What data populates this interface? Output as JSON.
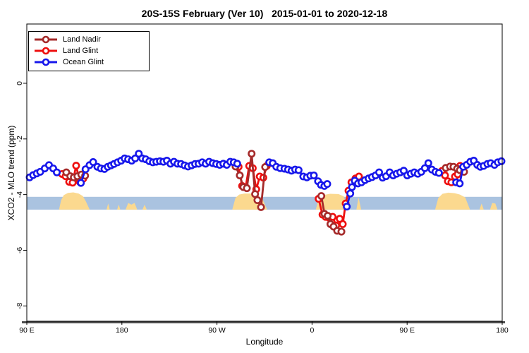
{
  "chart_data": {
    "type": "line",
    "title": "20S-15S February (Ver 10)   2015-01-01 to 2020-12-18",
    "xlabel": "Longitude",
    "ylabel": "XCO2 - MLO trend (ppm)",
    "x_axis": {
      "coordinate": "degrees east of left edge; axis wraps 90E > 180 > 90W > 0 > 90E > 180",
      "lim": [
        0,
        450
      ],
      "ticks": [
        {
          "t": 0,
          "label": "90 E"
        },
        {
          "t": 90,
          "label": "180"
        },
        {
          "t": 180,
          "label": "90 W"
        },
        {
          "t": 270,
          "label": "0"
        },
        {
          "t": 360,
          "label": "90 E"
        },
        {
          "t": 450,
          "label": "180"
        }
      ]
    },
    "y_axis": {
      "lim": [
        -8.55,
        2.13
      ],
      "ticks": [
        {
          "v": 0,
          "label": "0"
        },
        {
          "v": -2,
          "label": "-2"
        },
        {
          "v": -4,
          "label": "-4"
        },
        {
          "v": -6,
          "label": "-6"
        },
        {
          "v": -8,
          "label": "-8"
        }
      ]
    },
    "legend": [
      {
        "label": "Land Nadir",
        "color": "#A52A2A"
      },
      {
        "label": "Land Glint",
        "color": "#EE0F0F"
      },
      {
        "label": "Ocean Glint",
        "color": "#1717EB"
      }
    ],
    "ocean_band": {
      "color": "#AAC3E0",
      "top": -4.08,
      "bottom": -4.54
    },
    "land_elevation": {
      "color": "#FBD98F",
      "base": -4.54,
      "mounds": [
        [
          [
            30.5,
            -4.54
          ],
          [
            32.5,
            -4.2
          ],
          [
            35,
            -4.02
          ],
          [
            39,
            -3.94
          ],
          [
            44,
            -3.92
          ],
          [
            49,
            -3.96
          ],
          [
            53,
            -4.05
          ],
          [
            56,
            -4.25
          ],
          [
            59.5,
            -4.54
          ]
        ],
        [
          [
            75.5,
            -4.54
          ],
          [
            77,
            -4.32
          ],
          [
            78.5,
            -4.54
          ]
        ],
        [
          [
            85.5,
            -4.54
          ],
          [
            87,
            -4.36
          ],
          [
            88.5,
            -4.54
          ]
        ],
        [
          [
            93.5,
            -4.54
          ],
          [
            96,
            -4.3
          ],
          [
            99,
            -4.36
          ],
          [
            102,
            -4.3
          ],
          [
            104.5,
            -4.54
          ]
        ],
        [
          [
            109.5,
            -4.54
          ],
          [
            111.5,
            -4.36
          ],
          [
            113.5,
            -4.54
          ]
        ],
        [
          [
            194.5,
            -4.54
          ],
          [
            197.5,
            -4.12
          ],
          [
            201,
            -4.0
          ],
          [
            206,
            -3.96
          ],
          [
            212,
            -3.96
          ],
          [
            218,
            -4.02
          ],
          [
            223,
            -4.15
          ],
          [
            227.5,
            -4.54
          ]
        ],
        [
          [
            273.5,
            -4.54
          ],
          [
            276.5,
            -4.16
          ],
          [
            280.5,
            -4.02
          ],
          [
            287,
            -3.97
          ],
          [
            295,
            -3.98
          ],
          [
            300,
            -4.06
          ],
          [
            303.5,
            -4.54
          ]
        ],
        [
          [
            312,
            -4.54
          ],
          [
            314,
            -4.1
          ],
          [
            316.5,
            -4.54
          ]
        ],
        [
          [
            386.5,
            -4.54
          ],
          [
            389.5,
            -4.12
          ],
          [
            393.5,
            -3.97
          ],
          [
            399,
            -3.93
          ],
          [
            405,
            -3.95
          ],
          [
            410,
            -4.0
          ],
          [
            415,
            -4.1
          ],
          [
            419.5,
            -4.54
          ]
        ],
        [
          [
            428.5,
            -4.54
          ],
          [
            430.5,
            -4.32
          ],
          [
            432.5,
            -4.54
          ]
        ],
        [
          [
            438.5,
            -4.54
          ],
          [
            440.5,
            -4.3
          ],
          [
            443.5,
            -4.32
          ],
          [
            445.5,
            -4.54
          ]
        ]
      ]
    },
    "series": [
      {
        "name": "Land Glint",
        "color": "#EE0F0F",
        "segments": [
          [
            [
              33.4,
              -3.26
            ],
            [
              36.7,
              -3.34
            ],
            [
              40.1,
              -3.54
            ],
            [
              43.4,
              -3.57
            ],
            [
              46.7,
              -2.96
            ],
            [
              50.1,
              -3.54
            ],
            [
              53.4,
              -3.43
            ]
          ],
          [
            [
              200.5,
              -3.0
            ],
            [
              203.8,
              -3.69
            ],
            [
              207.2,
              -3.73
            ],
            [
              210.5,
              -2.97
            ],
            [
              213.9,
              -3.05
            ],
            [
              217.2,
              -3.81
            ],
            [
              220.5,
              -3.35
            ],
            [
              223.9,
              -3.39
            ],
            [
              227.2,
              -2.97
            ]
          ],
          [
            [
              276.2,
              -4.15
            ],
            [
              279.9,
              -4.72
            ],
            [
              282.9,
              -4.8
            ],
            [
              286.2,
              -4.83
            ],
            [
              289.5,
              -4.8
            ],
            [
              292.8,
              -5.11
            ],
            [
              296.2,
              -4.87
            ],
            [
              299.1,
              -5.06
            ],
            [
              301.8,
              -4.32
            ],
            [
              304.5,
              -3.86
            ],
            [
              307.3,
              -3.56
            ],
            [
              311.1,
              -3.42
            ],
            [
              314.4,
              -3.35
            ]
          ],
          [
            [
              393,
              -3.15
            ],
            [
              395.9,
              -3.31
            ],
            [
              398.6,
              -3.52
            ],
            [
              401.9,
              -3.56
            ],
            [
              405.3,
              -3.35
            ],
            [
              407.9,
              -3.27
            ],
            [
              410.1,
              -2.97
            ]
          ]
        ]
      },
      {
        "name": "Land Nadir",
        "color": "#A52A2A",
        "segments": [
          [
            [
              37.4,
              -3.2
            ],
            [
              41.2,
              -3.34
            ],
            [
              44.5,
              -3.38
            ],
            [
              47.9,
              -3.34
            ],
            [
              51.6,
              -3.28
            ],
            [
              55.2,
              -3.32
            ]
          ],
          [
            [
              197.6,
              -2.99
            ],
            [
              201.6,
              -3.31
            ],
            [
              205,
              -3.73
            ],
            [
              208.3,
              -3.77
            ],
            [
              212.8,
              -2.53
            ],
            [
              216.1,
              -3.98
            ],
            [
              218.3,
              -4.2
            ],
            [
              221.7,
              -4.45
            ],
            [
              225.6,
              -3.01
            ]
          ],
          [
            [
              278.8,
              -4.05
            ],
            [
              281.8,
              -4.69
            ],
            [
              284.8,
              -4.76
            ],
            [
              287.4,
              -5.06
            ],
            [
              290.4,
              -5.15
            ],
            [
              293.8,
              -5.3
            ],
            [
              297.8,
              -5.33
            ]
          ],
          [
            [
              396.6,
              -3.04
            ],
            [
              400.6,
              -2.99
            ],
            [
              403.9,
              -3.0
            ],
            [
              407.3,
              -3.07
            ],
            [
              409.9,
              -3.12
            ],
            [
              413.9,
              -3.18
            ]
          ]
        ]
      },
      {
        "name": "Ocean Glint",
        "color": "#1717EB",
        "segments": [
          [
            [
              2.7,
              -3.38
            ],
            [
              6,
              -3.3
            ],
            [
              9.4,
              -3.24
            ],
            [
              12.7,
              -3.18
            ],
            [
              17,
              -3.06
            ],
            [
              21,
              -2.94
            ],
            [
              25,
              -3.06
            ],
            [
              28.4,
              -3.2
            ]
          ],
          [
            [
              51.2,
              -3.58
            ],
            [
              55.6,
              -3.09
            ],
            [
              59.4,
              -2.94
            ],
            [
              62.8,
              -2.83
            ],
            [
              66.8,
              -3.0
            ],
            [
              70.1,
              -3.06
            ],
            [
              73.5,
              -3.08
            ],
            [
              76.6,
              -3.0
            ],
            [
              79.7,
              -2.95
            ],
            [
              82.6,
              -2.9
            ],
            [
              85.9,
              -2.84
            ],
            [
              89.3,
              -2.78
            ],
            [
              92.6,
              -2.7
            ],
            [
              95.9,
              -2.73
            ],
            [
              99.3,
              -2.78
            ],
            [
              102.6,
              -2.7
            ],
            [
              106,
              -2.53
            ],
            [
              109.3,
              -2.7
            ],
            [
              112.6,
              -2.73
            ],
            [
              116,
              -2.8
            ],
            [
              119.3,
              -2.84
            ],
            [
              122.6,
              -2.82
            ],
            [
              126,
              -2.8
            ],
            [
              129.3,
              -2.82
            ],
            [
              132.6,
              -2.78
            ],
            [
              136,
              -2.89
            ],
            [
              139.3,
              -2.82
            ],
            [
              142.6,
              -2.89
            ],
            [
              146,
              -2.9
            ],
            [
              149.3,
              -2.95
            ],
            [
              152.6,
              -2.99
            ],
            [
              156,
              -2.95
            ],
            [
              159.3,
              -2.9
            ],
            [
              162.6,
              -2.89
            ],
            [
              166,
              -2.84
            ],
            [
              169.3,
              -2.89
            ],
            [
              172.6,
              -2.82
            ],
            [
              176,
              -2.87
            ],
            [
              179.3,
              -2.9
            ],
            [
              182.6,
              -2.93
            ],
            [
              186,
              -2.89
            ],
            [
              189.3,
              -2.93
            ],
            [
              192.6,
              -2.82
            ],
            [
              195.9,
              -2.84
            ],
            [
              199.2,
              -2.89
            ]
          ],
          [
            [
              229.5,
              -2.84
            ],
            [
              232.8,
              -2.87
            ],
            [
              236.2,
              -3.0
            ],
            [
              239.9,
              -3.05
            ],
            [
              243.9,
              -3.07
            ],
            [
              247.3,
              -3.1
            ],
            [
              250.6,
              -3.14
            ],
            [
              254,
              -3.1
            ],
            [
              257.3,
              -3.12
            ],
            [
              261.7,
              -3.35
            ],
            [
              265.1,
              -3.38
            ],
            [
              268.4,
              -3.32
            ],
            [
              271.7,
              -3.31
            ],
            [
              275.7,
              -3.52
            ],
            [
              278.4,
              -3.65
            ],
            [
              281.7,
              -3.69
            ],
            [
              284.4,
              -3.62
            ]
          ],
          [
            [
              302.9,
              -4.43
            ],
            [
              306.2,
              -3.96
            ],
            [
              307.8,
              -3.73
            ],
            [
              310.4,
              -3.5
            ],
            [
              313.5,
              -3.6
            ],
            [
              316.8,
              -3.56
            ],
            [
              320.1,
              -3.48
            ],
            [
              323.5,
              -3.42
            ],
            [
              326.8,
              -3.37
            ],
            [
              330.1,
              -3.31
            ],
            [
              333.5,
              -3.2
            ],
            [
              336.8,
              -3.39
            ],
            [
              340.1,
              -3.34
            ],
            [
              343.5,
              -3.2
            ],
            [
              346.8,
              -3.31
            ],
            [
              350.1,
              -3.25
            ],
            [
              353.5,
              -3.2
            ],
            [
              356.8,
              -3.14
            ],
            [
              360.1,
              -3.31
            ],
            [
              363.5,
              -3.25
            ],
            [
              366.8,
              -3.2
            ],
            [
              370.1,
              -3.25
            ],
            [
              373.4,
              -3.18
            ],
            [
              376.8,
              -3.05
            ],
            [
              380.1,
              -2.87
            ],
            [
              383.4,
              -3.1
            ],
            [
              386.8,
              -3.18
            ],
            [
              390.1,
              -3.22
            ]
          ],
          [
            [
              406.4,
              -3.56
            ],
            [
              409.8,
              -3.6
            ],
            [
              413.1,
              -3.0
            ],
            [
              416.4,
              -2.93
            ],
            [
              419.8,
              -2.82
            ],
            [
              423.1,
              -2.78
            ],
            [
              426.4,
              -2.93
            ],
            [
              429.3,
              -3.0
            ],
            [
              432.4,
              -2.97
            ],
            [
              436,
              -2.9
            ],
            [
              439.1,
              -2.87
            ],
            [
              442.7,
              -2.93
            ],
            [
              445.8,
              -2.84
            ],
            [
              449.3,
              -2.8
            ]
          ]
        ]
      }
    ]
  }
}
